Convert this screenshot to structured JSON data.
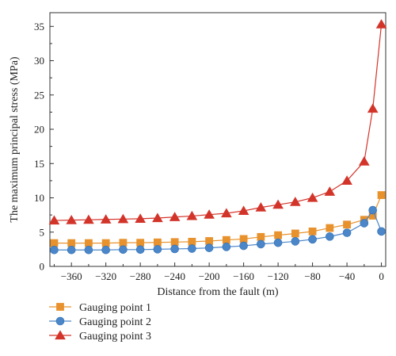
{
  "chart_data": {
    "type": "line",
    "xlabel": "Distance from the fault (m)",
    "ylabel": "The maximum principal stress (MPa)",
    "xlim": [
      -385,
      5
    ],
    "ylim": [
      0,
      37
    ],
    "xticks": [
      -360,
      -320,
      -280,
      -240,
      -200,
      -160,
      -120,
      -80,
      -40,
      0
    ],
    "yticks": [
      0,
      5,
      10,
      15,
      20,
      25,
      30,
      35
    ],
    "x": [
      -380,
      -360,
      -340,
      -320,
      -300,
      -280,
      -260,
      -240,
      -220,
      -200,
      -180,
      -160,
      -140,
      -120,
      -100,
      -80,
      -60,
      -40,
      -20,
      -10,
      0
    ],
    "series": [
      {
        "name": "Gauging point 1",
        "color": "#E8922E",
        "marker": "square",
        "values": [
          3.4,
          3.4,
          3.4,
          3.4,
          3.45,
          3.45,
          3.5,
          3.55,
          3.6,
          3.7,
          3.85,
          4.0,
          4.3,
          4.55,
          4.8,
          5.1,
          5.6,
          6.1,
          6.8,
          7.4,
          10.4
        ]
      },
      {
        "name": "Gauging point 2",
        "color": "#4A86C8",
        "marker": "circle",
        "values": [
          2.4,
          2.4,
          2.4,
          2.4,
          2.45,
          2.45,
          2.5,
          2.55,
          2.6,
          2.7,
          2.85,
          3.0,
          3.25,
          3.45,
          3.65,
          3.95,
          4.35,
          4.9,
          6.3,
          8.2,
          5.1
        ]
      },
      {
        "name": "Gauging point 3",
        "color": "#D3342A",
        "marker": "triangle",
        "values": [
          6.7,
          6.75,
          6.8,
          6.85,
          6.9,
          6.95,
          7.05,
          7.2,
          7.35,
          7.55,
          7.75,
          8.1,
          8.6,
          9.0,
          9.4,
          10.0,
          10.9,
          12.5,
          15.3,
          23.0,
          35.3
        ]
      }
    ],
    "legend_position": "bottom-left"
  }
}
